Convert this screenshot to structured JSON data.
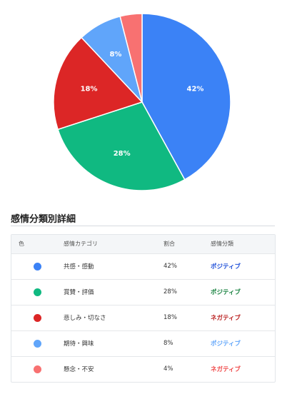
{
  "chart_data": {
    "type": "pie",
    "categories": [
      "共感・感動",
      "賞賛・評価",
      "悲しみ・切なさ",
      "期待・興味",
      "懸念・不安"
    ],
    "values": [
      42,
      28,
      18,
      8,
      4
    ],
    "labels": [
      "42%",
      "28%",
      "18%",
      "8%",
      ""
    ],
    "colors": [
      "#3b82f6",
      "#10b981",
      "#dc2626",
      "#60a5fa",
      "#f87171"
    ]
  },
  "table": {
    "title": "感情分類別詳細",
    "headers": [
      "色",
      "感情カテゴリ",
      "割合",
      "感情分類"
    ],
    "rows": [
      {
        "color": "#3b82f6",
        "category": "共感・感動",
        "ratio": "42%",
        "class": "ポジティブ",
        "class_color": "#1d4ed8"
      },
      {
        "color": "#10b981",
        "category": "賞賛・評価",
        "ratio": "28%",
        "class": "ポジティブ",
        "class_color": "#15803d"
      },
      {
        "color": "#dc2626",
        "category": "悲しみ・切なさ",
        "ratio": "18%",
        "class": "ネガティブ",
        "class_color": "#b91c1c"
      },
      {
        "color": "#60a5fa",
        "category": "期待・興味",
        "ratio": "8%",
        "class": "ポジティブ",
        "class_color": "#60a5fa"
      },
      {
        "color": "#f87171",
        "category": "懸念・不安",
        "ratio": "4%",
        "class": "ネガティブ",
        "class_color": "#ef4444"
      }
    ]
  }
}
